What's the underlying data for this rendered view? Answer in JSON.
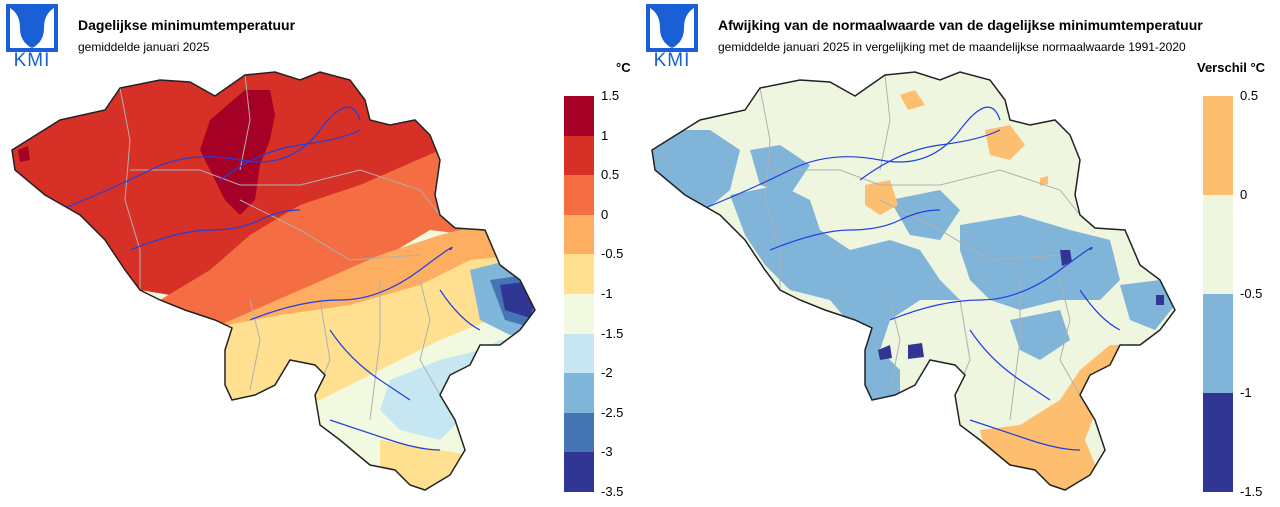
{
  "brand": {
    "logo_text": "KMI"
  },
  "left": {
    "title": "Dagelijkse minimumtemperatuur",
    "subtitle": "gemiddelde januari 2025",
    "legend_unit": "°C",
    "legend": [
      {
        "label": "1.5",
        "color": "#a50026"
      },
      {
        "label": "1",
        "color": "#d73027"
      },
      {
        "label": "0.5",
        "color": "#f46d43"
      },
      {
        "label": "0",
        "color": "#fdae61"
      },
      {
        "label": "-0.5",
        "color": "#fee090"
      },
      {
        "label": "-1",
        "color": "#f2f9e1"
      },
      {
        "label": "-1.5",
        "color": "#c6e6f1"
      },
      {
        "label": "-2",
        "color": "#80b6da"
      },
      {
        "label": "-2.5",
        "color": "#4575b4"
      },
      {
        "label": "-3",
        "color": "#313695"
      }
    ],
    "legend_last": "-3.5"
  },
  "right": {
    "title": "Afwijking van de normaalwaarde van de dagelijkse minimumtemperatuur",
    "subtitle": "gemiddelde januari 2025 in vergelijking met de maandelijkse normaalwaarde 1991-2020",
    "legend_unit": "Verschil °C",
    "legend": [
      {
        "label": "0.5",
        "color": "#fdbf6f"
      },
      {
        "label": "0",
        "color": "#eef6e0"
      },
      {
        "label": "-0.5",
        "color": "#80b4d9"
      },
      {
        "label": "-1",
        "color": "#313695"
      }
    ],
    "legend_last": "-1.5"
  },
  "colors": {
    "border": "#222222",
    "rivers": "#1f3fe0",
    "provinces": "#b0b0b0"
  }
}
